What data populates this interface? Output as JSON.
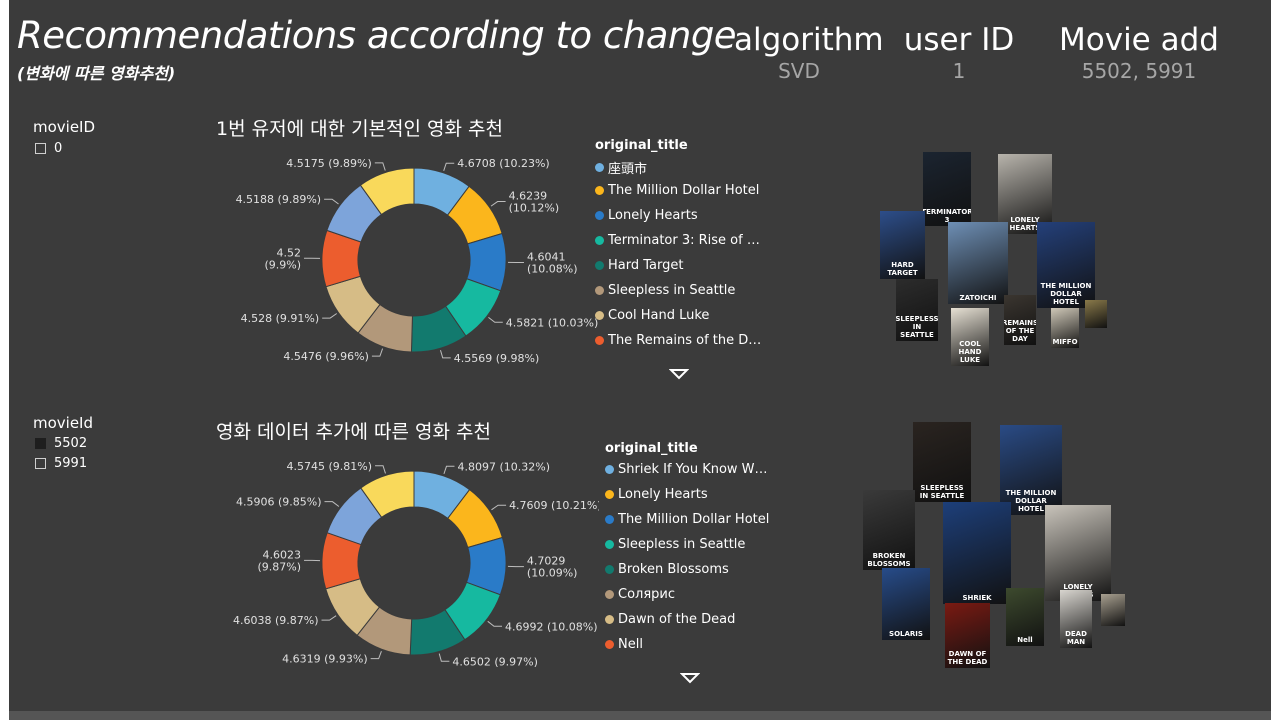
{
  "header": {
    "title": "Recommendations according to change",
    "subtitle": "(변화에 따른 영화추천)"
  },
  "kpis": [
    {
      "label": "algorithm",
      "value": "SVD"
    },
    {
      "label": "user ID",
      "value": "1"
    },
    {
      "label": "Movie add",
      "value": "5502, 5991"
    }
  ],
  "slicer_top": {
    "title": "movieID",
    "items": [
      {
        "label": "0",
        "checked": false
      }
    ]
  },
  "slicer_bottom": {
    "title": "movieId",
    "items": [
      {
        "label": "5502",
        "checked": true
      },
      {
        "label": "5991",
        "checked": false
      }
    ]
  },
  "colors": [
    "#6fb0e0",
    "#fbb61c",
    "#2a7bc8",
    "#16b9a0",
    "#127a6e",
    "#b2987a",
    "#d6bc86",
    "#ec5d2e",
    "#7da4da",
    "#f9d95b"
  ],
  "legend_title": "original_title",
  "chart_data": [
    {
      "type": "pie",
      "title": "1번 유저에 대한 기본적인 영화 추천",
      "categories": [
        "座頭市",
        "The Million Dollar Hotel",
        "Lonely Hearts",
        "Terminator 3: Rise of …",
        "Hard Target",
        "Sleepless in Seattle",
        "Cool Hand Luke",
        "The Remains of the D…",
        "",
        ""
      ],
      "values": [
        4.6708,
        4.6239,
        4.6041,
        4.5821,
        4.5569,
        4.5476,
        4.528,
        4.52,
        4.5188,
        4.5175
      ],
      "labels": [
        [
          "4.6708 (10.23%)"
        ],
        [
          "4.6239",
          "(10.12%)"
        ],
        [
          "4.6041",
          "(10.08%)"
        ],
        [
          "4.5821 (10.03%)"
        ],
        [
          "4.5569 (9.98%)"
        ],
        [
          "4.5476 (9.96%)"
        ],
        [
          "4.528 (9.91%)"
        ],
        [
          "4.52",
          "(9.9%)"
        ],
        [
          "4.5188 (9.89%)"
        ],
        [
          "4.5175 (9.89%)"
        ]
      ],
      "legend_visible": 8
    },
    {
      "type": "pie",
      "title": "영화 데이터 추가에 따른 영화 추천",
      "categories": [
        "Shriek If You Know W…",
        "Lonely Hearts",
        "The Million Dollar Hotel",
        "Sleepless in Seattle",
        "Broken Blossoms",
        "Солярис",
        "Dawn of the Dead",
        "Nell",
        "",
        ""
      ],
      "values": [
        4.8097,
        4.7609,
        4.7029,
        4.6992,
        4.6502,
        4.6319,
        4.6038,
        4.6023,
        4.5906,
        4.5745
      ],
      "labels": [
        [
          "4.8097 (10.32%)"
        ],
        [
          "4.7609 (10.21%)"
        ],
        [
          "4.7029",
          "(10.09%)"
        ],
        [
          "4.6992 (10.08%)"
        ],
        [
          "4.6502 (9.97%)"
        ],
        [
          "4.6319 (9.93%)"
        ],
        [
          "4.6038 (9.87%)"
        ],
        [
          "4.6023",
          "(9.87%)"
        ],
        [
          "4.5906 (9.85%)"
        ],
        [
          "4.5745 (9.81%)"
        ]
      ],
      "legend_visible": 8
    }
  ],
  "posters_top": [
    {
      "caption": "TERMINATOR 3",
      "color": "#1b2430"
    },
    {
      "caption": "LONELY HEARTS",
      "color": "#b8b4ac"
    },
    {
      "caption": "HARD TARGET",
      "color": "#2d4e8a"
    },
    {
      "caption": "ZATOICHI",
      "color": "#6e8fb5"
    },
    {
      "caption": "THE MILLION DOLLAR HOTEL",
      "color": "#24407a"
    },
    {
      "caption": "SLEEPLESS IN SEATTLE",
      "color": "#2c2c2c"
    },
    {
      "caption": "COOL HAND LUKE",
      "color": "#e7e1d4"
    },
    {
      "caption": "REMAINS OF THE DAY",
      "color": "#3b3630"
    },
    {
      "caption": "MIFFO",
      "color": "#cfc8b8"
    },
    {
      "caption": "",
      "color": "#8a7a4a"
    }
  ],
  "posters_bottom": [
    {
      "caption": "SLEEPLESS IN SEATTLE",
      "color": "#2a2420"
    },
    {
      "caption": "THE MILLION DOLLAR HOTEL",
      "color": "#2a4b85"
    },
    {
      "caption": "BROKEN BLOSSOMS",
      "color": "#3a3a3a"
    },
    {
      "caption": "SHRIEK",
      "color": "#1d3f7a"
    },
    {
      "caption": "LONELY HEARTS",
      "color": "#c9c4bb"
    },
    {
      "caption": "SOLARIS",
      "color": "#274c8a"
    },
    {
      "caption": "DAWN OF THE DEAD",
      "color": "#7a1a12"
    },
    {
      "caption": "Nell",
      "color": "#3d4a2e"
    },
    {
      "caption": "DEAD MAN",
      "color": "#d8d5cf"
    },
    {
      "caption": "",
      "color": "#a8a090"
    }
  ]
}
